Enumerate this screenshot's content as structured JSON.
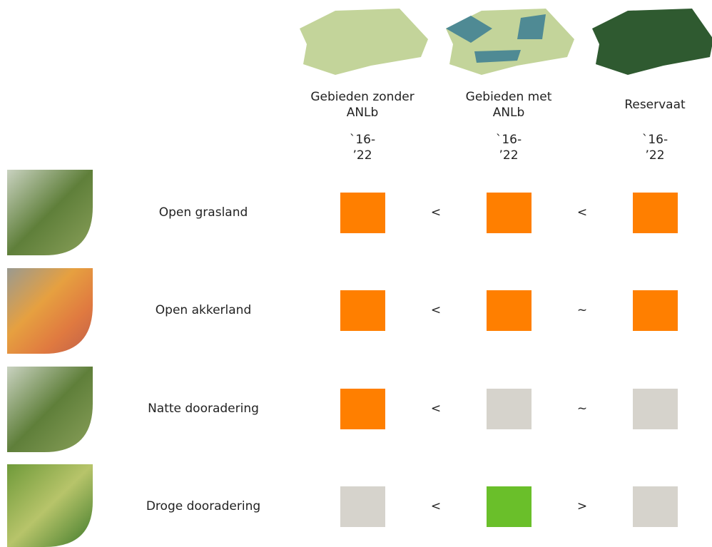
{
  "columns": [
    {
      "title": [
        "Gebieden zonder",
        "ANLb"
      ],
      "period": [
        "`16-",
        "’22"
      ]
    },
    {
      "title": [
        "Gebieden met",
        "ANLb"
      ],
      "period": [
        "`16-",
        "’22"
      ]
    },
    {
      "title": [
        "Reservaat"
      ],
      "period": [
        "`16-",
        "’22"
      ]
    }
  ],
  "rows": [
    {
      "label": "Open grasland",
      "cells": [
        "#ff7f00",
        "#ff7f00",
        "#ff7f00"
      ],
      "comparisons": [
        "<",
        "<"
      ]
    },
    {
      "label": "Open akkerland",
      "cells": [
        "#ff7f00",
        "#ff7f00",
        "#ff7f00"
      ],
      "comparisons": [
        "<",
        "~"
      ]
    },
    {
      "label": "Natte dooradering",
      "cells": [
        "#ff7f00",
        "#d6d3cc",
        "#d6d3cc"
      ],
      "comparisons": [
        "<",
        "~"
      ]
    },
    {
      "label": "Droge dooradering",
      "cells": [
        "#d6d3cc",
        "#6abf2a",
        "#d6d3cc"
      ],
      "comparisons": [
        "<",
        ">"
      ]
    }
  ]
}
